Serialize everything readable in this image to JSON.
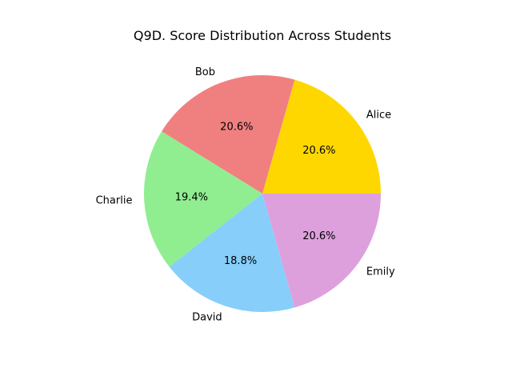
{
  "chart_data": {
    "type": "pie",
    "title": "Q9D. Score Distribution Across Students",
    "categories": [
      "Alice",
      "Bob",
      "Charlie",
      "David",
      "Emily"
    ],
    "values": [
      20.6,
      20.6,
      19.4,
      18.8,
      20.6
    ],
    "percent_labels": [
      "20.6%",
      "20.6%",
      "19.4%",
      "18.8%",
      "20.6%"
    ],
    "colors": [
      "#FFD700",
      "#F08080",
      "#90EE90",
      "#87CEFA",
      "#DDA0DD"
    ],
    "start_angle_deg": 0,
    "direction": "counterclockwise",
    "legend": "none"
  }
}
